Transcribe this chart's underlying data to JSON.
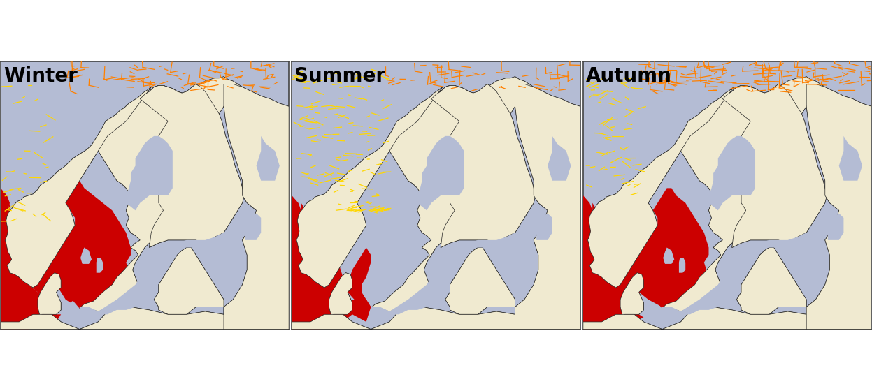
{
  "panels": [
    "Winter",
    "Summer",
    "Autumn"
  ],
  "ocean_color": "#b4bcd4",
  "land_color": "#f0ead0",
  "title_color": "#000000",
  "title_fontsize": 20,
  "title_fontweight": "bold",
  "border_color": "#222222",
  "line_color_orange": "#FF8000",
  "line_color_yellow": "#FFD700",
  "fill_color_red": "#CC0000",
  "fig_width": 12.47,
  "fig_height": 5.6,
  "bg_color": "#ffffff",
  "panel_border_color": "#444444",
  "xlim": [
    4.0,
    35.0
  ],
  "ylim": [
    54.0,
    72.0
  ]
}
